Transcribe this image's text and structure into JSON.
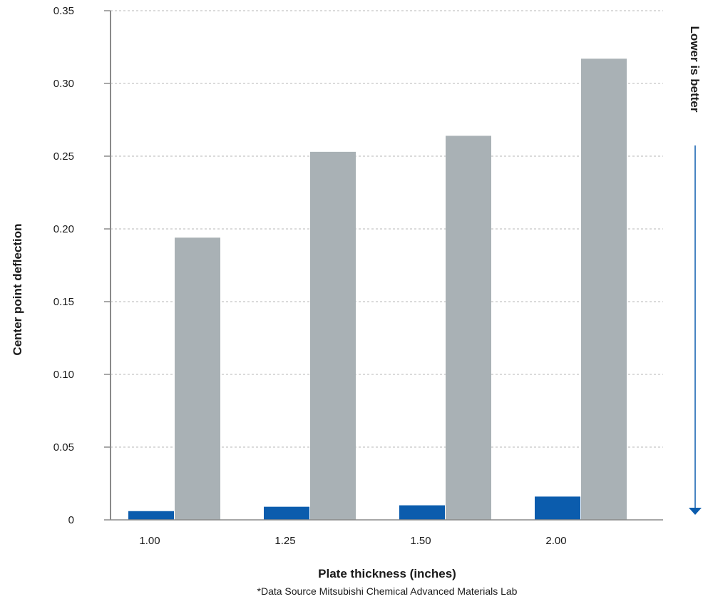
{
  "chart_data": {
    "type": "bar",
    "categories": [
      "1.00",
      "1.25",
      "1.50",
      "2.00"
    ],
    "series": [
      {
        "values": [
          0.006,
          0.009,
          0.01,
          0.016
        ],
        "color": "#0b5cad"
      },
      {
        "values": [
          0.194,
          0.253,
          0.264,
          0.317
        ],
        "color": "#a9b1b5"
      }
    ],
    "title": "",
    "xlabel": "Plate thickness (inches)",
    "ylabel": "Center point deflection",
    "ylim": [
      0,
      0.35
    ],
    "yticks": [
      "0",
      "0.05",
      "0.10",
      "0.15",
      "0.20",
      "0.25",
      "0.30",
      "0.35"
    ],
    "grid": "horizontal dashed",
    "annotation": "Lower is better",
    "annotation_color": "#0b5cad",
    "source_note": "*Data Source Mitsubishi Chemical Advanced Materials Lab"
  }
}
